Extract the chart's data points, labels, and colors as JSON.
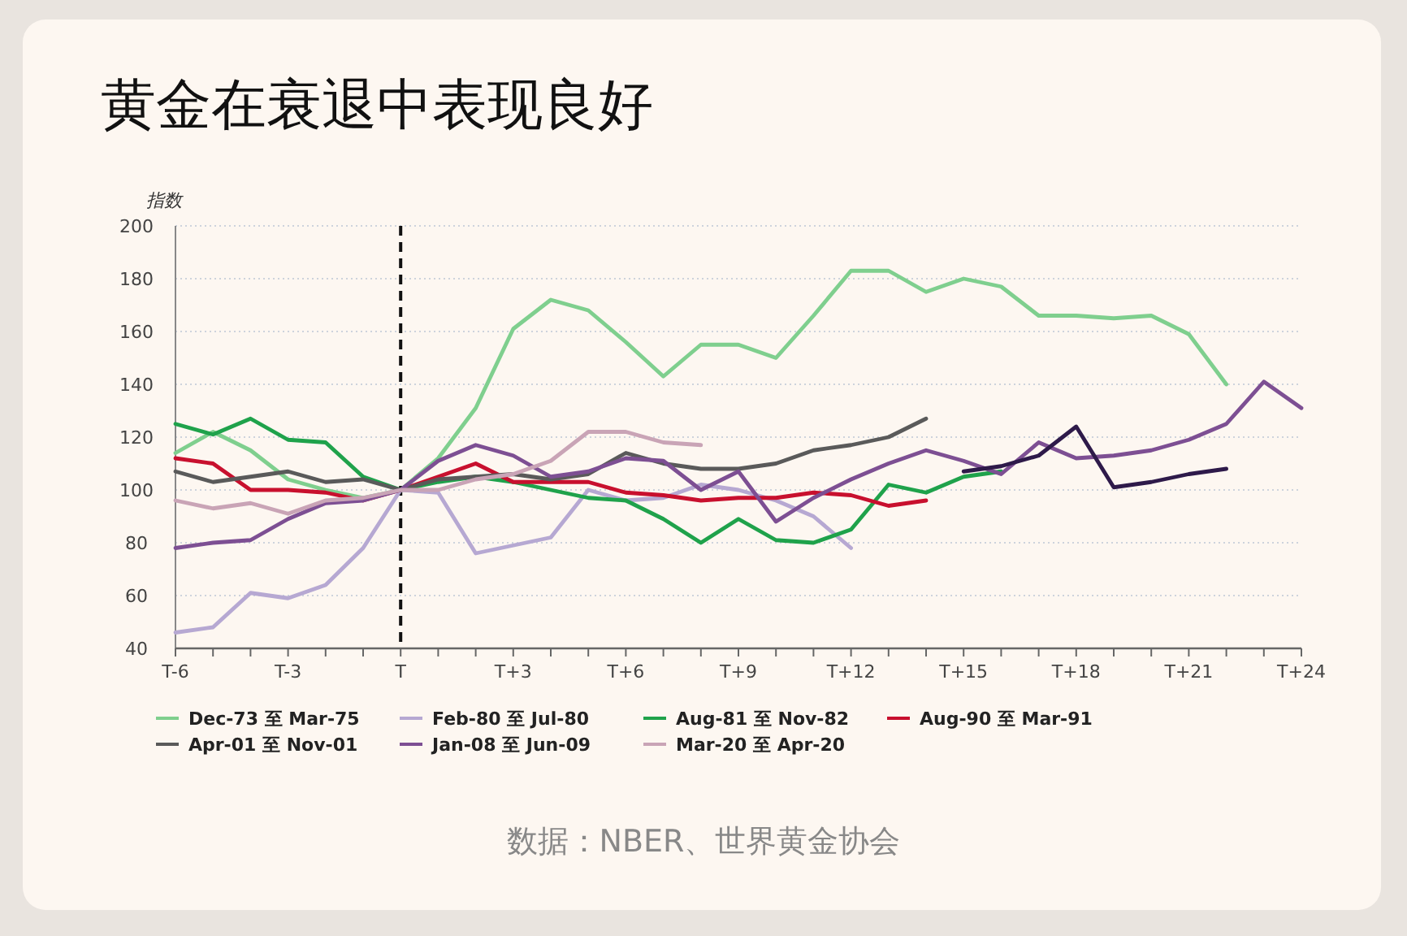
{
  "chart_data": {
    "type": "line",
    "title": "黄金在衰退中表现良好",
    "ylabel": "指数",
    "annotations": [
      "数据：NBER、世界黄金协会"
    ],
    "ylim": [
      40,
      200
    ],
    "yticks": [
      40,
      60,
      80,
      100,
      120,
      140,
      160,
      180,
      200
    ],
    "categories": [
      "T-6",
      null,
      null,
      "T-3",
      null,
      null,
      "T",
      null,
      null,
      "T+3",
      null,
      null,
      "T+6",
      null,
      null,
      "T+9",
      null,
      null,
      "T+12",
      null,
      null,
      "T+15",
      null,
      null,
      "T+18",
      null,
      null,
      "T+21",
      null,
      null,
      "T+24"
    ],
    "grid": "y",
    "legend": "bottom",
    "line_style": "solid",
    "marker": "none",
    "ref_lines": [
      {
        "axis": "x",
        "value": "T",
        "label": null,
        "color": "#111111",
        "line_style": "dashed"
      }
    ],
    "series": [
      {
        "name": "Dec-73 至 Mar-75",
        "color": "#7fcf8e",
        "values": [
          114,
          122,
          115,
          104,
          100,
          97,
          100,
          112,
          131,
          161,
          172,
          168,
          156,
          143,
          155,
          155,
          150,
          166,
          183,
          183,
          175,
          180,
          177,
          166,
          166,
          165,
          166,
          159,
          140,
          null,
          null
        ]
      },
      {
        "name": "Feb-80 至 Jul-80",
        "color": "#b6a8d2",
        "values": [
          46,
          48,
          61,
          59,
          64,
          78,
          100,
          99,
          76,
          79,
          82,
          100,
          96,
          97,
          102,
          100,
          96,
          90,
          78,
          null,
          null,
          null,
          null,
          null,
          null,
          null,
          null,
          null,
          null,
          null,
          null
        ]
      },
      {
        "name": "Aug-81 至 Nov-82",
        "color": "#1fa24b",
        "values": [
          125,
          121,
          127,
          119,
          118,
          105,
          100,
          103,
          105,
          103,
          100,
          97,
          96,
          89,
          80,
          89,
          81,
          80,
          85,
          102,
          99,
          105,
          107,
          null,
          null,
          null,
          null,
          null,
          null,
          null,
          null
        ]
      },
      {
        "name": "Aug-90 至 Mar-91",
        "color": "#c8102e",
        "values": [
          112,
          110,
          100,
          100,
          99,
          96,
          100,
          105,
          110,
          103,
          103,
          103,
          99,
          98,
          96,
          97,
          97,
          99,
          98,
          94,
          96,
          null,
          null,
          null,
          null,
          null,
          null,
          null,
          null,
          null,
          null
        ]
      },
      {
        "name": "Apr-01 至 Nov-01",
        "color": "#5a5a5a",
        "values": [
          107,
          103,
          105,
          107,
          103,
          104,
          100,
          104,
          105,
          106,
          104,
          106,
          114,
          110,
          108,
          108,
          110,
          115,
          117,
          120,
          127,
          null,
          null,
          null,
          null,
          null,
          null,
          null,
          null,
          null,
          null
        ]
      },
      {
        "name": "Jan-08 至 Jun-09",
        "color": "#7d4f93",
        "values": [
          78,
          80,
          81,
          89,
          95,
          96,
          100,
          111,
          117,
          113,
          105,
          107,
          112,
          111,
          100,
          107,
          88,
          97,
          104,
          110,
          115,
          111,
          106,
          118,
          112,
          113,
          115,
          119,
          125,
          141,
          131
        ]
      },
      {
        "name": "Mar-20 至 Apr-20",
        "color": "#c9a4b6",
        "values": [
          96,
          93,
          95,
          91,
          96,
          97,
          100,
          100,
          104,
          106,
          111,
          122,
          122,
          118,
          117,
          null,
          null,
          null,
          null,
          null,
          null,
          null,
          null,
          null,
          null,
          null,
          null,
          null,
          null,
          null,
          null
        ]
      },
      {
        "color": "#2e1a4a",
        "values": [
          null,
          null,
          null,
          null,
          null,
          null,
          null,
          null,
          null,
          null,
          null,
          null,
          null,
          null,
          null,
          null,
          null,
          null,
          null,
          null,
          null,
          107,
          109,
          113,
          124,
          101,
          103,
          106,
          108,
          null,
          null
        ]
      }
    ]
  }
}
